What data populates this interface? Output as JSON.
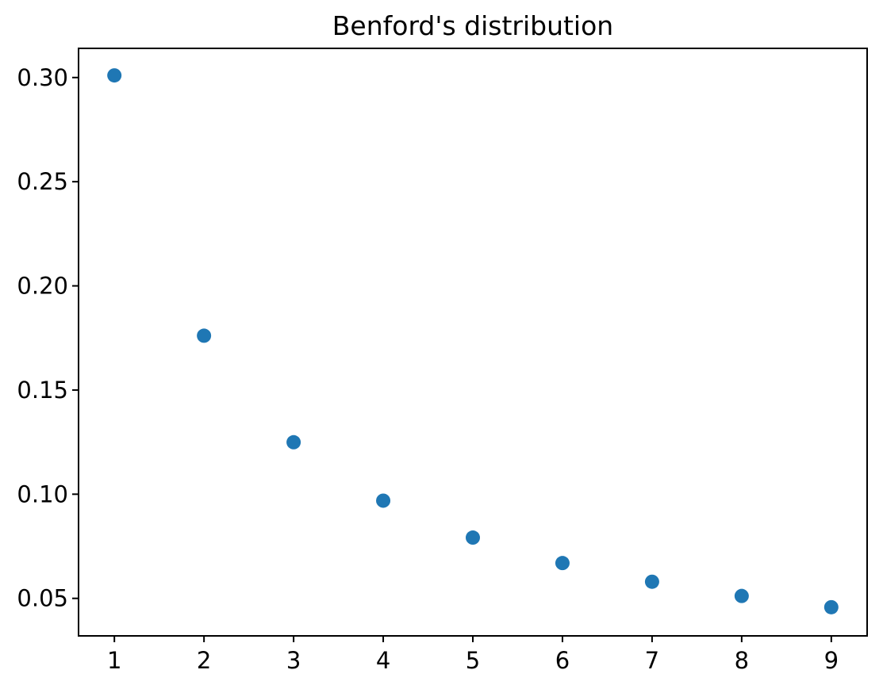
{
  "chart_data": {
    "type": "scatter",
    "title": "Benford's distribution",
    "xlabel": "",
    "ylabel": "",
    "x": [
      1,
      2,
      3,
      4,
      5,
      6,
      7,
      8,
      9
    ],
    "y": [
      0.30103,
      0.17609,
      0.12494,
      0.09691,
      0.07918,
      0.06695,
      0.05799,
      0.05115,
      0.04576
    ],
    "xlim": [
      0.6,
      9.4
    ],
    "ylim": [
      0.032,
      0.314
    ],
    "x_ticks": [
      1,
      2,
      3,
      4,
      5,
      6,
      7,
      8,
      9
    ],
    "x_tick_labels": [
      "1",
      "2",
      "3",
      "4",
      "5",
      "6",
      "7",
      "8",
      "9"
    ],
    "y_ticks": [
      0.05,
      0.1,
      0.15,
      0.2,
      0.25,
      0.3
    ],
    "y_tick_labels": [
      "0.05",
      "0.10",
      "0.15",
      "0.20",
      "0.25",
      "0.30"
    ],
    "grid": false,
    "legend": null,
    "marker_color": "#1f77b4",
    "axis_color": "#000000",
    "text_color": "#000000",
    "background_color": "#ffffff"
  }
}
